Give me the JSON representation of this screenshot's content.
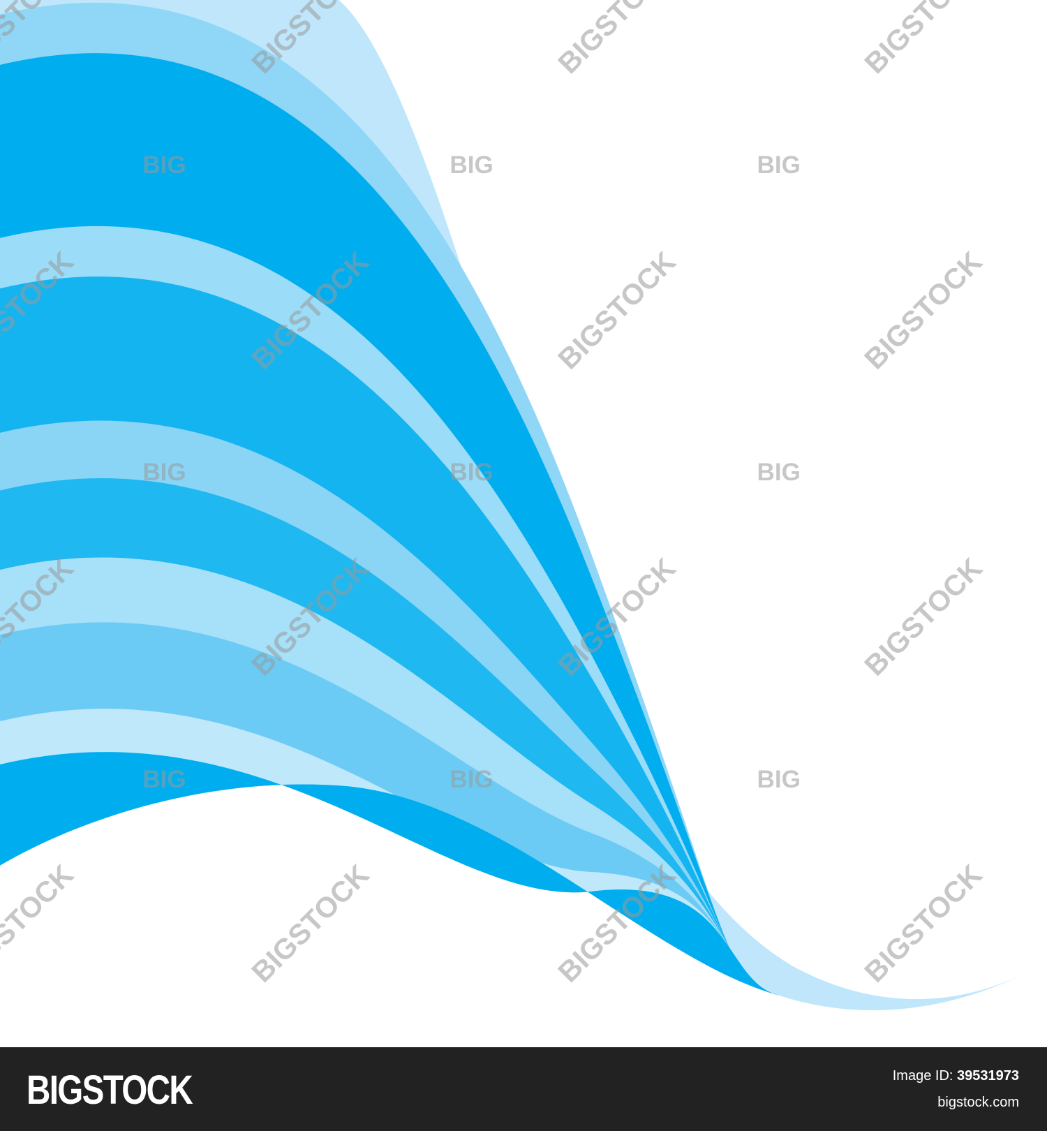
{
  "watermark": {
    "brand": "BIGSTOCK",
    "short": "BIG"
  },
  "footer": {
    "logo": "BIGSTOCK",
    "image_id_label": "Image ID:",
    "image_id": "39531973",
    "site": "bigstock.com"
  }
}
